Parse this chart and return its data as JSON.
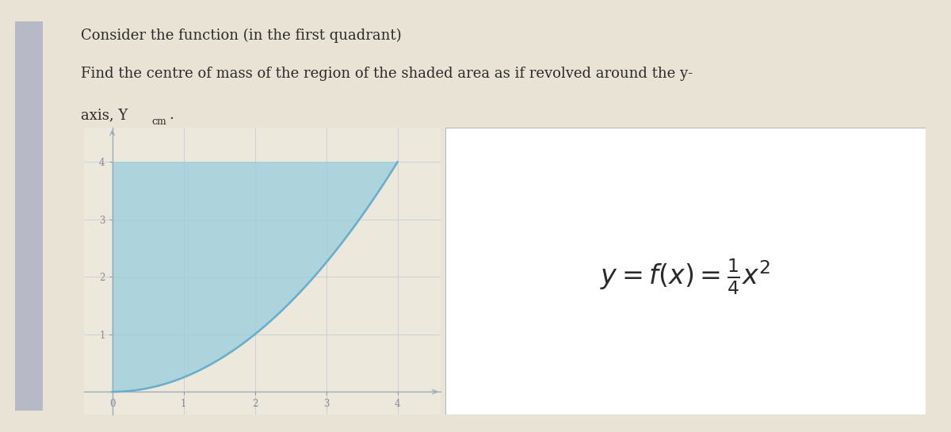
{
  "title_line1": "Consider the function (in the first quadrant)",
  "title_line2": "Find the centre of mass of the region of the shaded area as if revolved around the y-",
  "title_line3": "axis, Y",
  "title_subscript": "cm",
  "title_dot": ".",
  "formula_text": "$y = f(x) = \\frac{1}{4}x^2$",
  "x_min": -0.4,
  "x_max": 4.6,
  "y_min": -0.4,
  "y_max": 4.6,
  "x_ticks": [
    0,
    1,
    2,
    3,
    4
  ],
  "y_ticks": [
    1,
    2,
    3,
    4
  ],
  "shade_color": "#9dcfdc",
  "shade_alpha": 0.8,
  "curve_color": "#6aadcc",
  "grid_color": "#c5cdd5",
  "plot_bg_color": "#ede8dc",
  "left_bar_color": "#9099bb",
  "axes_color": "#9aabb8",
  "tick_label_color": "#888899",
  "text_color": "#2a2a2a",
  "figure_bg": "#e8e3d5",
  "formula_bg": "#ffffff",
  "formula_border": "#b0baba",
  "graph_border": "#b0baba"
}
